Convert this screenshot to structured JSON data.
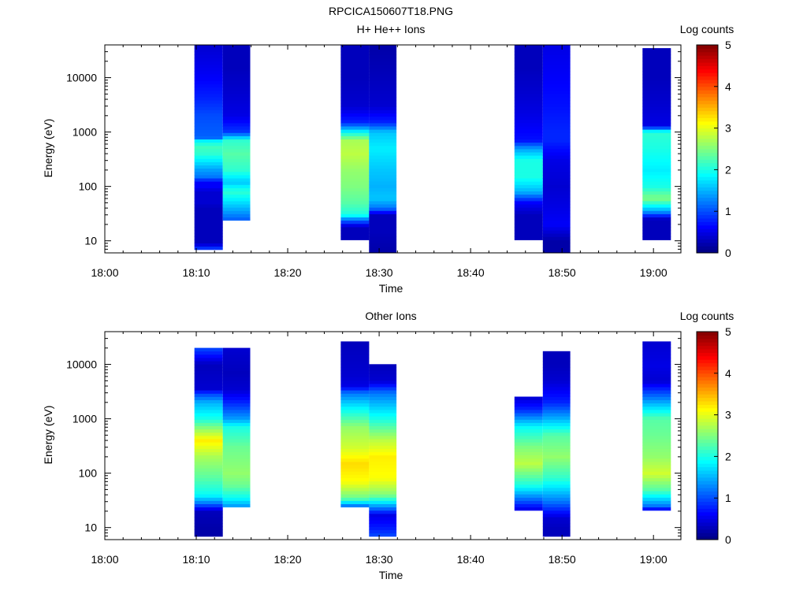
{
  "figure_title": "RPCICA150607T18.PNG",
  "colormap": [
    "#00007f",
    "#0000ff",
    "#007fff",
    "#00ffff",
    "#7fff7f",
    "#ffff00",
    "#ff7f00",
    "#ff0000",
    "#7f0000"
  ],
  "chart_data": [
    {
      "type": "heatmap",
      "title": "H+ He++ Ions",
      "xlabel": "Time",
      "ylabel": "Energy (eV)",
      "x_ticks": [
        "18:00",
        "18:10",
        "18:20",
        "18:30",
        "18:40",
        "18:50",
        "19:00"
      ],
      "y_ticks": [
        "10",
        "100",
        "1000",
        "10000"
      ],
      "y_scale": "log",
      "ylim": [
        6,
        40000
      ],
      "colorbar": {
        "label": "Log counts",
        "ticks": [
          "0",
          "1",
          "2",
          "3",
          "4",
          "5"
        ],
        "range": [
          0,
          5
        ]
      },
      "columns": [
        {
          "time_start": "18:09.8",
          "time_end": "18:12.9",
          "profile": [
            [
              7,
              1.0
            ],
            [
              9,
              0.3
            ],
            [
              12,
              0.3
            ],
            [
              15,
              0.3
            ],
            [
              20,
              0.3
            ],
            [
              28,
              0.3
            ],
            [
              40,
              0.3
            ],
            [
              50,
              0.4
            ],
            [
              80,
              0.4
            ],
            [
              100,
              0.6
            ],
            [
              120,
              0.6
            ],
            [
              150,
              1.2
            ],
            [
              200,
              1.4
            ],
            [
              300,
              1.8
            ],
            [
              400,
              2.1
            ],
            [
              550,
              2.2
            ],
            [
              700,
              1.8
            ],
            [
              800,
              1.1
            ],
            [
              2000,
              1.0
            ],
            [
              4000,
              0.8
            ],
            [
              10000,
              0.6
            ],
            [
              40000,
              0.4
            ]
          ]
        },
        {
          "time_start": "18:12.9",
          "time_end": "18:15.9",
          "profile": [
            [
              25,
              1.1
            ],
            [
              35,
              1.4
            ],
            [
              50,
              1.7
            ],
            [
              80,
              2.1
            ],
            [
              120,
              1.6
            ],
            [
              200,
              2.1
            ],
            [
              400,
              2.3
            ],
            [
              700,
              2.1
            ],
            [
              1000,
              0.9
            ],
            [
              2000,
              0.5
            ],
            [
              5000,
              0.4
            ],
            [
              15000,
              0.3
            ],
            [
              40000,
              0.3
            ]
          ]
        },
        {
          "time_start": "18:25.8",
          "time_end": "18:28.9",
          "profile": [
            [
              10,
              0.3
            ],
            [
              18,
              0.3
            ],
            [
              26,
              1.4
            ],
            [
              30,
              2.0
            ],
            [
              50,
              2.3
            ],
            [
              100,
              2.5
            ],
            [
              200,
              2.6
            ],
            [
              400,
              2.8
            ],
            [
              700,
              2.7
            ],
            [
              1000,
              1.9
            ],
            [
              1500,
              0.8
            ],
            [
              3000,
              0.4
            ],
            [
              10000,
              0.3
            ],
            [
              40000,
              0.3
            ]
          ]
        },
        {
          "time_start": "18:28.9",
          "time_end": "18:31.9",
          "profile": [
            [
              6,
              0.2
            ],
            [
              15,
              0.3
            ],
            [
              30,
              0.3
            ],
            [
              40,
              1.2
            ],
            [
              60,
              1.6
            ],
            [
              100,
              1.5
            ],
            [
              200,
              1.6
            ],
            [
              500,
              1.8
            ],
            [
              1000,
              1.6
            ],
            [
              1500,
              0.8
            ],
            [
              3000,
              0.4
            ],
            [
              10000,
              0.3
            ],
            [
              40000,
              0.2
            ]
          ]
        },
        {
          "time_start": "18:44.8",
          "time_end": "18:47.9",
          "profile": [
            [
              10,
              0.3
            ],
            [
              15,
              0.3
            ],
            [
              30,
              0.3
            ],
            [
              50,
              0.6
            ],
            [
              80,
              1.5
            ],
            [
              150,
              2.0
            ],
            [
              300,
              2.0
            ],
            [
              500,
              1.4
            ],
            [
              700,
              0.7
            ],
            [
              2000,
              0.5
            ],
            [
              5000,
              0.4
            ],
            [
              15000,
              0.3
            ],
            [
              40000,
              0.3
            ]
          ]
        },
        {
          "time_start": "18:47.9",
          "time_end": "18:50.9",
          "profile": [
            [
              6,
              0.2
            ],
            [
              10,
              0.2
            ],
            [
              20,
              0.6
            ],
            [
              40,
              0.5
            ],
            [
              100,
              0.4
            ],
            [
              300,
              0.5
            ],
            [
              700,
              0.8
            ],
            [
              1000,
              0.8
            ],
            [
              3000,
              0.7
            ],
            [
              10000,
              0.6
            ],
            [
              40000,
              0.5
            ]
          ]
        },
        {
          "time_start": "18:58.8",
          "time_end": "19:01.9",
          "profile": [
            [
              10,
              0.3
            ],
            [
              15,
              0.3
            ],
            [
              25,
              0.3
            ],
            [
              35,
              1.4
            ],
            [
              60,
              2.5
            ],
            [
              100,
              2.0
            ],
            [
              200,
              1.8
            ],
            [
              500,
              2.0
            ],
            [
              1000,
              2.1
            ],
            [
              1300,
              0.5
            ],
            [
              3000,
              0.4
            ],
            [
              10000,
              0.3
            ],
            [
              35000,
              0.3
            ]
          ]
        }
      ]
    },
    {
      "type": "heatmap",
      "title": "Other Ions",
      "xlabel": "Time",
      "ylabel": "Energy (eV)",
      "x_ticks": [
        "18:00",
        "18:10",
        "18:20",
        "18:30",
        "18:40",
        "18:50",
        "19:00"
      ],
      "y_ticks": [
        "10",
        "100",
        "1000",
        "10000"
      ],
      "y_scale": "log",
      "ylim": [
        6,
        40000
      ],
      "colorbar": {
        "label": "Log counts",
        "ticks": [
          "0",
          "1",
          "2",
          "3",
          "4",
          "5"
        ],
        "range": [
          0,
          5
        ]
      },
      "columns": [
        {
          "time_start": "18:09.8",
          "time_end": "18:12.9",
          "profile": [
            [
              7,
              0.2
            ],
            [
              9,
              0.2
            ],
            [
              20,
              0.3
            ],
            [
              28,
              1.2
            ],
            [
              40,
              1.9
            ],
            [
              80,
              2.3
            ],
            [
              200,
              2.7
            ],
            [
              400,
              3.2
            ],
            [
              700,
              2.5
            ],
            [
              1000,
              2.0
            ],
            [
              2000,
              1.5
            ],
            [
              3000,
              0.9
            ],
            [
              3500,
              0.4
            ],
            [
              10000,
              0.3
            ],
            [
              20000,
              1.0
            ]
          ]
        },
        {
          "time_start": "18:12.9",
          "time_end": "18:15.9",
          "profile": [
            [
              25,
              1.4
            ],
            [
              35,
              1.9
            ],
            [
              60,
              2.4
            ],
            [
              100,
              2.6
            ],
            [
              300,
              2.4
            ],
            [
              700,
              2.0
            ],
            [
              1000,
              1.4
            ],
            [
              2000,
              0.8
            ],
            [
              3500,
              0.4
            ],
            [
              7000,
              0.3
            ],
            [
              20000,
              0.4
            ]
          ]
        },
        {
          "time_start": "18:25.8",
          "time_end": "18:28.9",
          "profile": [
            [
              25,
              1.2
            ],
            [
              35,
              2.4
            ],
            [
              70,
              3.1
            ],
            [
              150,
              3.3
            ],
            [
              300,
              2.9
            ],
            [
              700,
              2.6
            ],
            [
              1500,
              1.9
            ],
            [
              3000,
              1.2
            ],
            [
              4000,
              0.5
            ],
            [
              6000,
              0.4
            ],
            [
              25000,
              0.3
            ]
          ]
        },
        {
          "time_start": "18:28.9",
          "time_end": "18:31.9",
          "profile": [
            [
              7,
              1.0
            ],
            [
              9,
              0.8
            ],
            [
              17,
              0.5
            ],
            [
              25,
              1.4
            ],
            [
              40,
              2.5
            ],
            [
              80,
              3.1
            ],
            [
              200,
              3.2
            ],
            [
              400,
              2.8
            ],
            [
              1000,
              2.0
            ],
            [
              3000,
              1.2
            ],
            [
              5000,
              0.4
            ],
            [
              10000,
              0.3
            ]
          ]
        },
        {
          "time_start": "18:44.8",
          "time_end": "18:47.9",
          "profile": [
            [
              20,
              0.4
            ],
            [
              30,
              1.0
            ],
            [
              60,
              2.0
            ],
            [
              150,
              2.8
            ],
            [
              300,
              2.5
            ],
            [
              700,
              1.9
            ],
            [
              1500,
              0.8
            ],
            [
              2500,
              0.4
            ]
          ]
        },
        {
          "time_start": "18:47.9",
          "time_end": "18:50.9",
          "profile": [
            [
              7,
              0.3
            ],
            [
              9,
              0.3
            ],
            [
              15,
              0.4
            ],
            [
              30,
              1.2
            ],
            [
              80,
              2.1
            ],
            [
              200,
              2.6
            ],
            [
              500,
              2.3
            ],
            [
              1000,
              1.5
            ],
            [
              2000,
              0.8
            ],
            [
              5000,
              0.4
            ],
            [
              10000,
              0.3
            ],
            [
              18000,
              0.3
            ]
          ]
        },
        {
          "time_start": "18:58.8",
          "time_end": "19:01.9",
          "profile": [
            [
              20,
              0.3
            ],
            [
              25,
              1.2
            ],
            [
              50,
              2.3
            ],
            [
              100,
              2.9
            ],
            [
              200,
              2.6
            ],
            [
              500,
              2.4
            ],
            [
              1000,
              2.3
            ],
            [
              2500,
              1.2
            ],
            [
              5000,
              0.4
            ],
            [
              9500,
              0.5
            ],
            [
              27000,
              0.4
            ]
          ]
        }
      ]
    }
  ]
}
